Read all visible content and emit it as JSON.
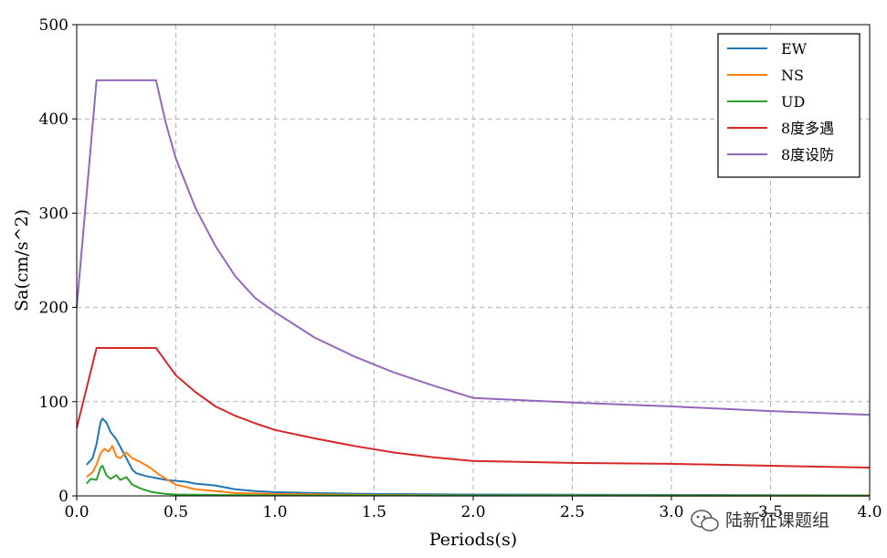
{
  "chart_data": {
    "type": "line",
    "xlabel": "Periods(s)",
    "ylabel": "Sa(cm/s^2)",
    "xlim": [
      0.0,
      4.0
    ],
    "ylim": [
      0,
      500
    ],
    "xticks": [
      "0.0",
      "0.5",
      "1.0",
      "1.5",
      "2.0",
      "2.5",
      "3.0",
      "3.5",
      "4.0"
    ],
    "yticks": [
      "0",
      "100",
      "200",
      "300",
      "400",
      "500"
    ],
    "grid": true,
    "legend_position": "top-right",
    "series": [
      {
        "name": "EW",
        "color": "#1f77b4",
        "points": [
          [
            0.05,
            33
          ],
          [
            0.08,
            40
          ],
          [
            0.1,
            55
          ],
          [
            0.12,
            78
          ],
          [
            0.13,
            82
          ],
          [
            0.15,
            78
          ],
          [
            0.17,
            68
          ],
          [
            0.2,
            60
          ],
          [
            0.22,
            52
          ],
          [
            0.25,
            40
          ],
          [
            0.28,
            28
          ],
          [
            0.3,
            24
          ],
          [
            0.35,
            21
          ],
          [
            0.4,
            19
          ],
          [
            0.45,
            17
          ],
          [
            0.5,
            16
          ],
          [
            0.55,
            15
          ],
          [
            0.6,
            13
          ],
          [
            0.7,
            11
          ],
          [
            0.8,
            7
          ],
          [
            0.9,
            5
          ],
          [
            1.0,
            4
          ],
          [
            1.2,
            3
          ],
          [
            1.5,
            2
          ],
          [
            2.0,
            1.5
          ],
          [
            3.0,
            1
          ],
          [
            4.0,
            0.5
          ]
        ]
      },
      {
        "name": "NS",
        "color": "#ff7f0e",
        "points": [
          [
            0.05,
            20
          ],
          [
            0.08,
            25
          ],
          [
            0.1,
            33
          ],
          [
            0.12,
            45
          ],
          [
            0.14,
            50
          ],
          [
            0.16,
            47
          ],
          [
            0.18,
            53
          ],
          [
            0.2,
            42
          ],
          [
            0.22,
            40
          ],
          [
            0.25,
            46
          ],
          [
            0.28,
            40
          ],
          [
            0.32,
            36
          ],
          [
            0.37,
            30
          ],
          [
            0.42,
            22
          ],
          [
            0.5,
            12
          ],
          [
            0.6,
            7
          ],
          [
            0.7,
            5
          ],
          [
            0.8,
            3
          ],
          [
            1.0,
            2
          ],
          [
            1.5,
            1
          ],
          [
            2.0,
            0.5
          ],
          [
            4.0,
            0.3
          ]
        ]
      },
      {
        "name": "UD",
        "color": "#2ca02c",
        "points": [
          [
            0.05,
            13
          ],
          [
            0.07,
            18
          ],
          [
            0.1,
            17
          ],
          [
            0.12,
            30
          ],
          [
            0.13,
            32
          ],
          [
            0.15,
            22
          ],
          [
            0.17,
            18
          ],
          [
            0.2,
            22
          ],
          [
            0.22,
            17
          ],
          [
            0.25,
            20
          ],
          [
            0.28,
            12
          ],
          [
            0.32,
            8
          ],
          [
            0.38,
            4
          ],
          [
            0.45,
            2
          ],
          [
            0.5,
            1.5
          ],
          [
            0.7,
            1
          ],
          [
            1.0,
            0.5
          ],
          [
            4.0,
            0.2
          ]
        ]
      },
      {
        "name": "8度多遇",
        "color": "#d62728",
        "points": [
          [
            0.0,
            72
          ],
          [
            0.1,
            157
          ],
          [
            0.4,
            157
          ],
          [
            0.5,
            128
          ],
          [
            0.6,
            110
          ],
          [
            0.7,
            95
          ],
          [
            0.8,
            85
          ],
          [
            0.9,
            77
          ],
          [
            1.0,
            70
          ],
          [
            1.2,
            61
          ],
          [
            1.4,
            53
          ],
          [
            1.6,
            46
          ],
          [
            1.8,
            41
          ],
          [
            2.0,
            37
          ],
          [
            2.5,
            35
          ],
          [
            3.0,
            34
          ],
          [
            3.5,
            32
          ],
          [
            4.0,
            30
          ]
        ]
      },
      {
        "name": "8度设防",
        "color": "#9467bd",
        "points": [
          [
            0.0,
            200
          ],
          [
            0.1,
            441
          ],
          [
            0.4,
            441
          ],
          [
            0.45,
            395
          ],
          [
            0.5,
            358
          ],
          [
            0.6,
            305
          ],
          [
            0.7,
            265
          ],
          [
            0.8,
            233
          ],
          [
            0.9,
            210
          ],
          [
            1.0,
            195
          ],
          [
            1.2,
            168
          ],
          [
            1.4,
            148
          ],
          [
            1.6,
            131
          ],
          [
            1.8,
            117
          ],
          [
            2.0,
            104
          ],
          [
            2.5,
            99
          ],
          [
            3.0,
            95
          ],
          [
            3.5,
            90
          ],
          [
            4.0,
            86
          ]
        ]
      }
    ]
  },
  "watermark": {
    "text": "陆新征课题组",
    "icon": "wechat-icon"
  }
}
